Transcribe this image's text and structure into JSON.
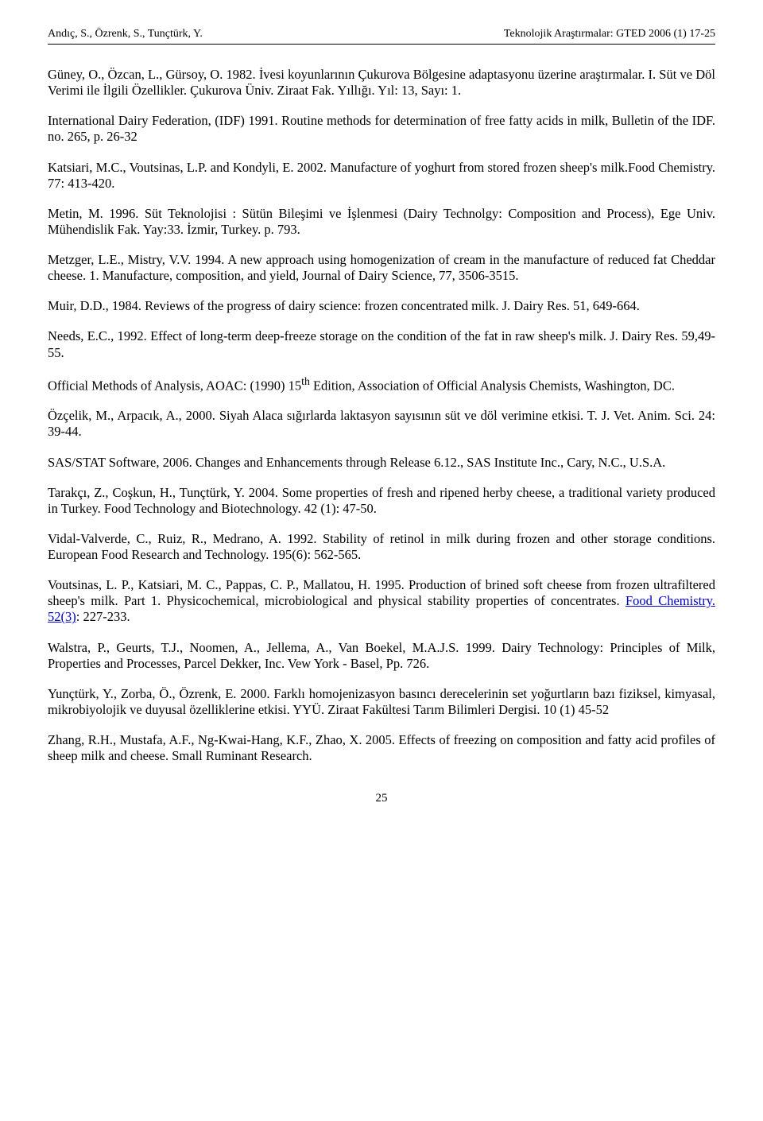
{
  "header": {
    "left": "Andıç, S., Özrenk, S., Tunçtürk, Y.",
    "right": "Teknolojik Araştırmalar: GTED 2006 (1) 17-25"
  },
  "references": [
    "Güney, O., Özcan, L., Gürsoy, O. 1982. İvesi koyunlarının Çukurova Bölgesine adaptasyonu üzerine araştırmalar. I. Süt ve Döl Verimi ile İlgili Özellikler. Çukurova Üniv. Ziraat Fak. Yıllığı. Yıl: 13, Sayı: 1.",
    "International Dairy Federation, (IDF) 1991. Routine methods for determination of free fatty acids in milk, Bulletin of the IDF. no. 265, p. 26-32",
    "Katsiari, M.C., Voutsinas, L.P. and Kondyli, E. 2002. Manufacture of yoghurt from stored frozen sheep's milk.Food Chemistry. 77: 413-420.",
    "Metin, M. 1996. Süt Teknolojisi : Sütün Bileşimi ve İşlenmesi (Dairy Technolgy: Composition and Process), Ege Univ. Mühendislik Fak. Yay:33. İzmir, Turkey. p. 793.",
    "Metzger, L.E., Mistry, V.V. 1994. A new approach using homogenization of cream in the manufacture of reduced fat Cheddar cheese. 1. Manufacture, composition, and yield, Journal of Dairy Science, 77, 3506-3515.",
    "Muir, D.D., 1984. Reviews of the progress of dairy science: frozen concentrated milk. J. Dairy Res. 51, 649-664.",
    "Needs, E.C., 1992. Effect of long-term deep-freeze storage on the condition of the fat in raw sheep's milk. J. Dairy Res. 59,49-55.",
    "Official Methods of Analysis, AOAC: (1990) 15<sup>th</sup> Edition, Association of Official Analysis Chemists, Washington, DC.",
    "Özçelik, M., Arpacık, A., 2000. Siyah Alaca sığırlarda laktasyon sayısının süt ve döl verimine etkisi. T. J. Vet. Anim. Sci. 24: 39-44.",
    "SAS/STAT Software, 2006. Changes and Enhancements through Release 6.12., SAS Institute Inc., Cary, N.C., U.S.A.",
    "Tarakçı, Z., Coşkun, H., Tunçtürk, Y. 2004. Some properties of fresh and ripened herby cheese, a traditional variety produced in Turkey. Food Technology and Biotechnology. 42 (1): 47-50.",
    "Vidal-Valverde, C., Ruiz, R., Medrano, A. 1992. Stability of retinol in milk during frozen and other storage conditions. European Food Research and Technology. 195(6): 562-565.",
    "Voutsinas, L. P., Katsiari, M. C., Pappas, C. P., Mallatou, H. 1995. Production of brined soft cheese from frozen ultrafiltered sheep's milk. Part 1. Physicochemical, microbiological and physical stability properties of concentrates. <span class=\"link\">Food Chemistry. 52(3)</span>: 227-233.",
    "Walstra, P., Geurts, T.J., Noomen, A., Jellema, A., Van Boekel, M.A.J.S. 1999. Dairy Technology: Principles of Milk, Properties and Processes, Parcel Dekker, Inc. Vew York - Basel, Pp. 726.",
    "Yunçtürk, Y., Zorba, Ö., Özrenk, E. 2000. Farklı homojenizasyon basıncı derecelerinin set yoğurtların bazı fiziksel, kimyasal, mikrobiyolojik ve duyusal özelliklerine etkisi. YYÜ. Ziraat Fakültesi Tarım Bilimleri Dergisi. 10 (1) 45-52",
    "Zhang, R.H., Mustafa, A.F., Ng-Kwai-Hang, K.F., Zhao, X. 2005. Effects of freezing on composition and fatty acid profiles of sheep milk and cheese. Small Ruminant Research."
  ],
  "page_number": "25"
}
